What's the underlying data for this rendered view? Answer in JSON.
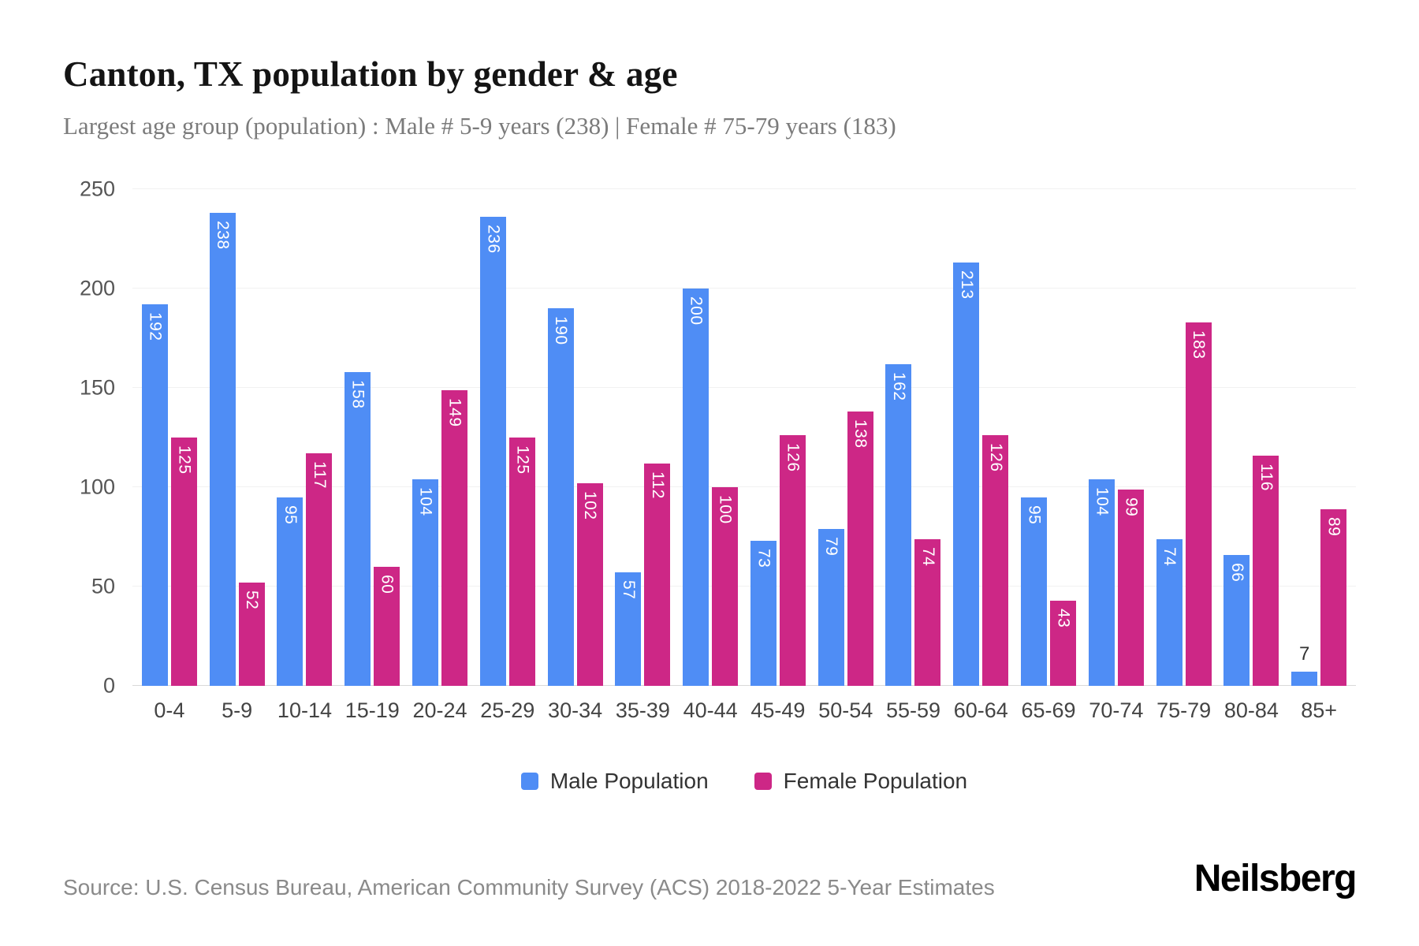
{
  "header": {
    "title": "Canton, TX population by gender & age",
    "subtitle": "Largest age group (population) : Male # 5-9 years (238) | Female # 75-79 years (183)"
  },
  "chart_data": {
    "type": "bar",
    "title": "Canton, TX population by gender & age",
    "xlabel": "",
    "ylabel": "",
    "categories": [
      "0-4",
      "5-9",
      "10-14",
      "15-19",
      "20-24",
      "25-29",
      "30-34",
      "35-39",
      "40-44",
      "45-49",
      "50-54",
      "55-59",
      "60-64",
      "65-69",
      "70-74",
      "75-79",
      "80-84",
      "85+"
    ],
    "series": [
      {
        "name": "Male Population",
        "color": "#4f8df5",
        "values": [
          192,
          238,
          95,
          158,
          104,
          236,
          190,
          57,
          200,
          73,
          79,
          162,
          213,
          95,
          104,
          74,
          66,
          7
        ]
      },
      {
        "name": "Female Population",
        "color": "#cd2786",
        "values": [
          125,
          52,
          117,
          60,
          149,
          125,
          102,
          112,
          100,
          126,
          138,
          74,
          126,
          43,
          99,
          183,
          116,
          89
        ]
      }
    ],
    "ylim": [
      0,
      250
    ],
    "yticks": [
      0,
      50,
      100,
      150,
      200,
      250
    ],
    "grid": true,
    "legend_position": "bottom",
    "value_labels": "inside-top-vertical"
  },
  "footer": {
    "source": "Source: U.S. Census Bureau, American Community Survey (ACS) 2018-2022 5-Year Estimates",
    "brand": "Neilsberg"
  }
}
